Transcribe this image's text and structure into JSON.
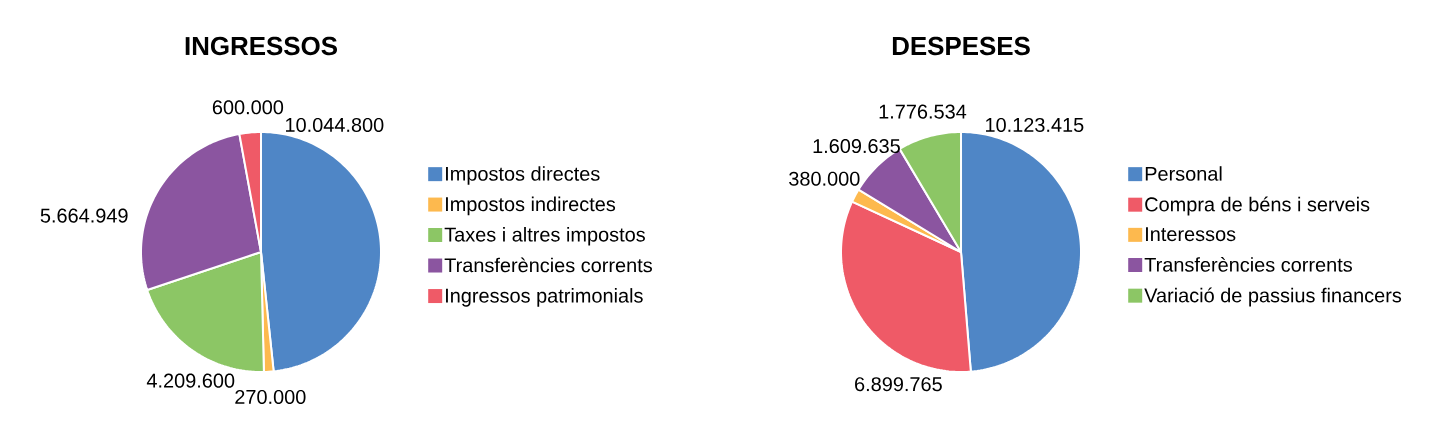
{
  "chart_data": [
    {
      "type": "pie",
      "title": "INGRESSOS",
      "legend": "right",
      "categories": [
        "Impostos directes",
        "Impostos indirectes",
        "Taxes i altres impostos",
        "Transferències corrents",
        "Ingressos patrimonials"
      ],
      "values": [
        10044800,
        270000,
        4209600,
        5664949,
        600000
      ],
      "value_labels": [
        "10.044.800",
        "270.000",
        "4.209.600",
        "5.664.949",
        "600.000"
      ],
      "colors": [
        "#4f86c6",
        "#fdb94e",
        "#8cc665",
        "#8b55a0",
        "#ef5a67"
      ]
    },
    {
      "type": "pie",
      "title": "DESPESES",
      "legend": "right",
      "categories": [
        "Personal",
        "Compra de béns i serveis",
        "Interessos",
        "Transferències corrents",
        "Variació de passius financers"
      ],
      "values": [
        10123415,
        6899765,
        380000,
        1609635,
        1776534
      ],
      "value_labels": [
        "10.123.415",
        "6.899.765",
        "380.000",
        "1.609.635",
        "1.776.534"
      ],
      "colors": [
        "#4f86c6",
        "#ef5a67",
        "#fdb94e",
        "#8b55a0",
        "#8cc665"
      ]
    }
  ]
}
